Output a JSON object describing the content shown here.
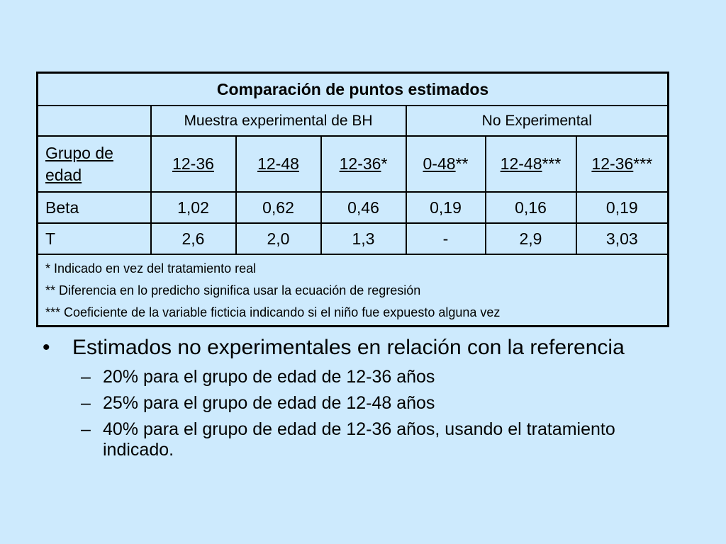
{
  "table": {
    "title": "Comparación de puntos estimados",
    "groups": [
      "Muestra experimental de BH",
      "No Experimental"
    ],
    "header_label": "Grupo de edad",
    "age_groups": [
      {
        "base": "12-36",
        "suffix": ""
      },
      {
        "base": "12-48",
        "suffix": ""
      },
      {
        "base": "12-36",
        "suffix": "*"
      },
      {
        "base": "0-48",
        "suffix": "**"
      },
      {
        "base": "12-48",
        "suffix": "***"
      },
      {
        "base": "12-36",
        "suffix": "***"
      }
    ],
    "rows": [
      {
        "label": "Beta",
        "values": [
          "1,02",
          "0,62",
          "0,46",
          "0,19",
          "0,16",
          "0,19"
        ]
      },
      {
        "label": "T",
        "values": [
          "2,6",
          "2,0",
          "1,3",
          "-",
          "2,9",
          "3,03"
        ]
      }
    ],
    "notes": [
      "* Indicado en vez del tratamiento real",
      "** Diferencia en lo predicho significa usar la ecuación de regresión",
      "*** Coeficiente de la variable ficticia indicando si el niño fue expuesto alguna vez"
    ]
  },
  "bullets": {
    "main_marker": "•",
    "main": "Estimados no experimentales en relación con la referencia",
    "sub_marker": "–",
    "sub": [
      "20% para el grupo de edad de 12-36 años",
      "25% para el grupo de edad de 12-48 años",
      "40% para el grupo de edad de 12-36 años, usando el tratamiento indicado."
    ]
  }
}
